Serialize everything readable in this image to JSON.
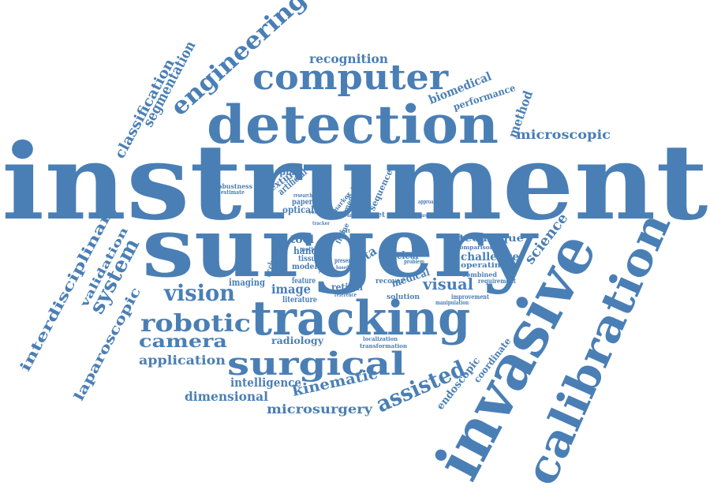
{
  "color": "#4a7fb5",
  "words": [
    {
      "text": "instrument"
    },
    {
      "text": "surgery"
    },
    {
      "text": "detection"
    },
    {
      "text": "tracking"
    },
    {
      "text": "invasive"
    },
    {
      "text": "calibration"
    },
    {
      "text": "computer"
    },
    {
      "text": "surgical"
    },
    {
      "text": "engineering"
    },
    {
      "text": "segmentation"
    },
    {
      "text": "classification"
    },
    {
      "text": "recognition"
    },
    {
      "text": "biomedical"
    },
    {
      "text": "performance"
    },
    {
      "text": "method"
    },
    {
      "text": "microscopic"
    },
    {
      "text": "system"
    },
    {
      "text": "laparoscopic"
    },
    {
      "text": "validation"
    },
    {
      "text": "interdisciplinary"
    },
    {
      "text": "vision"
    },
    {
      "text": "robotic"
    },
    {
      "text": "camera"
    },
    {
      "text": "application"
    },
    {
      "text": "intelligence"
    },
    {
      "text": "dimensional"
    },
    {
      "text": "kinematic"
    },
    {
      "text": "microsurgery"
    },
    {
      "text": "assisted"
    },
    {
      "text": "endoscopic"
    },
    {
      "text": "coordinate"
    },
    {
      "text": "science"
    },
    {
      "text": "visual"
    },
    {
      "text": "challenge"
    },
    {
      "text": "technique"
    },
    {
      "text": "comparison"
    },
    {
      "text": "operating"
    },
    {
      "text": "combined"
    },
    {
      "text": "requirement"
    },
    {
      "text": "improvement"
    },
    {
      "text": "manipulation"
    },
    {
      "text": "solution"
    },
    {
      "text": "medical"
    },
    {
      "text": "recover"
    },
    {
      "text": "nuclear"
    },
    {
      "text": "problem"
    },
    {
      "text": "failure"
    },
    {
      "text": "data"
    },
    {
      "text": "present"
    },
    {
      "text": "based"
    },
    {
      "text": "retinal"
    },
    {
      "text": "reference"
    },
    {
      "text": "radiology"
    },
    {
      "text": "localization"
    },
    {
      "text": "transformation"
    },
    {
      "text": "literature"
    },
    {
      "text": "feature"
    },
    {
      "text": "image"
    },
    {
      "text": "imaging"
    },
    {
      "text": "model"
    },
    {
      "text": "tissue"
    },
    {
      "text": "hand"
    },
    {
      "text": "tool"
    },
    {
      "text": "motion"
    },
    {
      "text": "occlusion"
    },
    {
      "text": "optical"
    },
    {
      "text": "paper"
    },
    {
      "text": "display"
    },
    {
      "text": "texture"
    },
    {
      "text": "artificial"
    },
    {
      "text": "robustness"
    },
    {
      "text": "estimate"
    },
    {
      "text": "medicine"
    },
    {
      "text": "marker"
    },
    {
      "text": "review"
    },
    {
      "text": "sequence"
    },
    {
      "text": "target"
    },
    {
      "text": "frame"
    },
    {
      "text": "approach"
    },
    {
      "text": "hardware"
    },
    {
      "text": "research"
    },
    {
      "text": "result"
    },
    {
      "text": "soft"
    },
    {
      "text": "analysis"
    },
    {
      "text": "program"
    },
    {
      "text": "tracker"
    }
  ]
}
